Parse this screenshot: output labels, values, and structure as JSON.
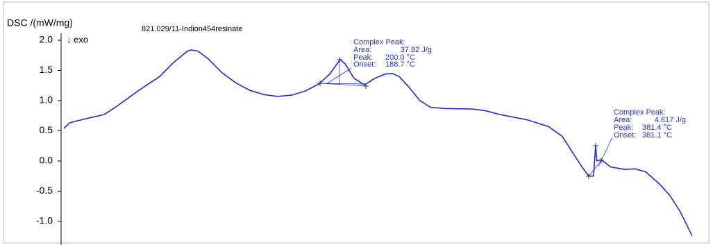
{
  "chart_data": {
    "type": "line",
    "y_label": "DSC /(mW/mg)",
    "sample": "821.029/11-Indion454resinate",
    "direction_label": "↓ exo",
    "ylim": [
      -1.38,
      2.08
    ],
    "yticks": [
      2.0,
      1.5,
      1.0,
      0.5,
      0.0,
      -0.5,
      -1.0
    ],
    "xlim": [
      0,
      452
    ],
    "series": [
      {
        "color": "#1a2bd6",
        "x": [
          2.0,
          5.9,
          15.8,
          30.6,
          40.4,
          55.2,
          70.0,
          79.8,
          89.7,
          92.2,
          97.1,
          104.5,
          114.3,
          124.2,
          134.1,
          143.9,
          153.8,
          163.6,
          173.5,
          183.3,
          190.7,
          198.1,
          201.6,
          208.0,
          215.4,
          222.8,
          230.2,
          235.1,
          240.0,
          247.4,
          254.8,
          262.2,
          272.0,
          291.8,
          301.6,
          311.5,
          331.2,
          346.0,
          355.8,
          363.2,
          369.6,
          374.6,
          378.0,
          379.5,
          380.5,
          383.4,
          390.3,
          400.2,
          407.6,
          415.0,
          424.8,
          432.2,
          439.6,
          448.0
        ],
        "values": [
          0.54,
          0.63,
          0.69,
          0.77,
          0.92,
          1.17,
          1.4,
          1.63,
          1.82,
          1.84,
          1.82,
          1.69,
          1.46,
          1.29,
          1.17,
          1.1,
          1.07,
          1.09,
          1.16,
          1.28,
          1.44,
          1.68,
          1.61,
          1.37,
          1.26,
          1.37,
          1.44,
          1.45,
          1.4,
          1.21,
          1.0,
          0.89,
          0.87,
          0.86,
          0.83,
          0.77,
          0.68,
          0.57,
          0.41,
          0.14,
          -0.09,
          -0.25,
          -0.25,
          0.25,
          0.0,
          0.02,
          -0.1,
          -0.14,
          -0.13,
          -0.18,
          -0.38,
          -0.57,
          -0.84,
          -1.24
        ]
      }
    ],
    "annotations": [
      {
        "title": "Complex Peak:",
        "area_label": "Area:",
        "area": "37.82 J/g",
        "peak_label": "Peak:",
        "peak": "200.0 °C",
        "onset_label": "Onset:",
        "onset": "188.7 °C"
      },
      {
        "title": "Complex Peak:",
        "area_label": "Area:",
        "area": "4.617 J/g",
        "peak_label": "Peak:",
        "peak": "381.4 °C",
        "onset_label": "Onset:",
        "onset": "381.1 °C"
      }
    ]
  }
}
